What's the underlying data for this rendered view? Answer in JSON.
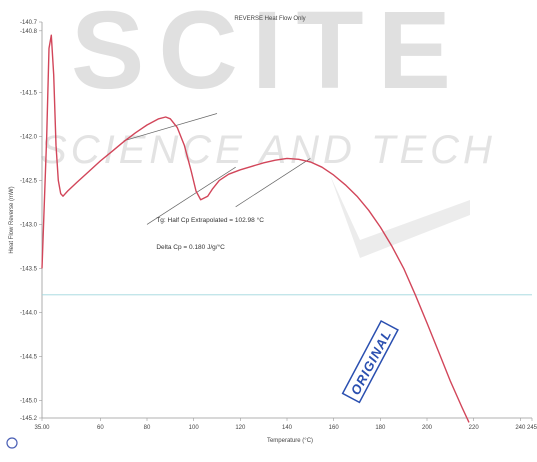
{
  "watermark": {
    "line1": "SCITE",
    "line2": "SCIENCE AND TECH",
    "color": "#d9d9d9"
  },
  "stamp": {
    "text": "ORIGINAL",
    "color": "#2a4fb0"
  },
  "chart_data": {
    "type": "line",
    "title": "REVERSE Heat Flow Only",
    "xlabel": "Temperature (°C)",
    "ylabel": "Heat Flow Reverse (mW)",
    "xlim": [
      35,
      245
    ],
    "ylim": [
      -145.2,
      -140.7
    ],
    "x_ticks": [
      {
        "value": 35,
        "label": "35.00"
      },
      {
        "value": 60,
        "label": "60"
      },
      {
        "value": 80,
        "label": "80"
      },
      {
        "value": 100,
        "label": "100"
      },
      {
        "value": 120,
        "label": "120"
      },
      {
        "value": 140,
        "label": "140"
      },
      {
        "value": 160,
        "label": "160"
      },
      {
        "value": 180,
        "label": "180"
      },
      {
        "value": 200,
        "label": "200"
      },
      {
        "value": 220,
        "label": "220"
      },
      {
        "value": 240,
        "label": "240"
      },
      {
        "value": 245,
        "label": "245"
      }
    ],
    "y_ticks": [
      {
        "value": -140.7,
        "label": "-140.7"
      },
      {
        "value": -140.8,
        "label": "-140.8"
      },
      {
        "value": -141.5,
        "label": "-141.5"
      },
      {
        "value": -142.0,
        "label": "-142.0"
      },
      {
        "value": -142.5,
        "label": "-142.5"
      },
      {
        "value": -143.0,
        "label": "-143.0"
      },
      {
        "value": -143.5,
        "label": "-143.5"
      },
      {
        "value": -144.0,
        "label": "-144.0"
      },
      {
        "value": -144.5,
        "label": "-144.5"
      },
      {
        "value": -145.0,
        "label": "-145.0"
      },
      {
        "value": -145.2,
        "label": "-145.2"
      }
    ],
    "reference_line": {
      "y": -143.8,
      "color": "#9fd6de"
    },
    "series": [
      {
        "color": "#d2465a",
        "points": [
          [
            35,
            -143.5
          ],
          [
            37,
            -142.0
          ],
          [
            38,
            -141.0
          ],
          [
            39,
            -140.85
          ],
          [
            40,
            -141.3
          ],
          [
            41,
            -142.1
          ],
          [
            42,
            -142.5
          ],
          [
            43,
            -142.65
          ],
          [
            44,
            -142.68
          ],
          [
            46,
            -142.62
          ],
          [
            50,
            -142.52
          ],
          [
            55,
            -142.4
          ],
          [
            60,
            -142.28
          ],
          [
            65,
            -142.17
          ],
          [
            70,
            -142.06
          ],
          [
            75,
            -141.96
          ],
          [
            80,
            -141.87
          ],
          [
            85,
            -141.8
          ],
          [
            88,
            -141.78
          ],
          [
            90,
            -141.8
          ],
          [
            93,
            -141.9
          ],
          [
            96,
            -142.1
          ],
          [
            99,
            -142.4
          ],
          [
            101,
            -142.62
          ],
          [
            103,
            -142.72
          ],
          [
            106,
            -142.68
          ],
          [
            108,
            -142.6
          ],
          [
            111,
            -142.5
          ],
          [
            115,
            -142.43
          ],
          [
            120,
            -142.38
          ],
          [
            125,
            -142.34
          ],
          [
            130,
            -142.3
          ],
          [
            135,
            -142.27
          ],
          [
            140,
            -142.25
          ],
          [
            145,
            -142.26
          ],
          [
            150,
            -142.29
          ],
          [
            155,
            -142.35
          ],
          [
            160,
            -142.44
          ],
          [
            165,
            -142.55
          ],
          [
            170,
            -142.68
          ],
          [
            175,
            -142.84
          ],
          [
            180,
            -143.03
          ],
          [
            185,
            -143.25
          ],
          [
            190,
            -143.5
          ],
          [
            195,
            -143.8
          ],
          [
            200,
            -144.12
          ],
          [
            205,
            -144.45
          ],
          [
            210,
            -144.78
          ],
          [
            215,
            -145.08
          ],
          [
            218,
            -145.25
          ]
        ]
      }
    ],
    "tangent_lines": [
      {
        "from": [
          70,
          -142.05
        ],
        "to": [
          110,
          -141.74
        ],
        "color": "#666666"
      },
      {
        "from": [
          80,
          -143.0
        ],
        "to": [
          118,
          -142.35
        ],
        "color": "#666666"
      },
      {
        "from": [
          118,
          -142.8
        ],
        "to": [
          150,
          -142.25
        ],
        "color": "#666666"
      }
    ],
    "annotations": [
      {
        "text": "Tg: Half Cp Extrapolated = 102.98 °C",
        "x": 84,
        "y": -142.97
      },
      {
        "text": "Delta Cp = 0.180 J/g/°C",
        "x": 84,
        "y": -143.28
      }
    ]
  }
}
